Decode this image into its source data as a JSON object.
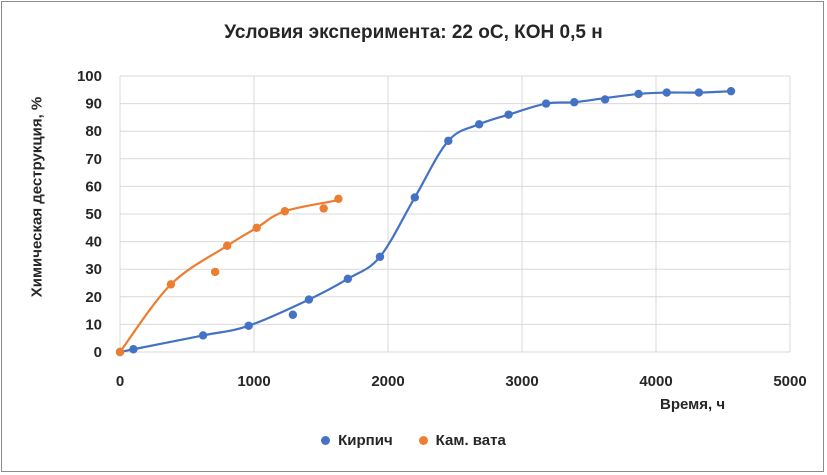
{
  "chart_data": {
    "type": "scatter",
    "title": "Условия эксперимента: 22 оС, КОН 0,5 н",
    "xlabel": "Время, ч",
    "ylabel": "Химическая деструкция, %",
    "xlim": [
      0,
      5000
    ],
    "ylim": [
      0,
      100
    ],
    "xticks": [
      0,
      1000,
      2000,
      3000,
      4000,
      5000
    ],
    "yticks": [
      0,
      10,
      20,
      30,
      40,
      50,
      60,
      70,
      80,
      90,
      100
    ],
    "grid": true,
    "legend_position": "bottom",
    "series": [
      {
        "name": "Кирпич",
        "color": "#4472c4",
        "x": [
          0,
          100,
          620,
          960,
          1290,
          1410,
          1700,
          1940,
          2200,
          2450,
          2680,
          2900,
          3180,
          3390,
          3620,
          3870,
          4080,
          4320,
          4560
        ],
        "y": [
          0,
          1,
          6,
          9.5,
          13.5,
          19,
          26.5,
          34.5,
          56,
          76.5,
          82.5,
          86,
          90,
          90.5,
          91.5,
          93.5,
          94,
          94,
          94.5
        ],
        "trend_x": [
          0,
          100,
          620,
          960,
          1410,
          1700,
          1940,
          2200,
          2450,
          2680,
          2900,
          3180,
          3390,
          3620,
          3870,
          4080,
          4320,
          4560
        ],
        "trend_y": [
          0,
          1,
          6,
          9.5,
          19,
          26.5,
          34.5,
          56,
          76.5,
          82.5,
          86,
          90,
          90.5,
          92,
          93.5,
          94,
          94,
          94.5
        ]
      },
      {
        "name": "Кам. вата",
        "color": "#ed7d31",
        "x": [
          0,
          380,
          710,
          800,
          1020,
          1230,
          1520,
          1630
        ],
        "y": [
          0,
          24.5,
          29,
          38.5,
          45,
          51,
          52,
          55.5
        ],
        "trend_x": [
          0,
          380,
          800,
          1020,
          1230,
          1630
        ],
        "trend_y": [
          0,
          24.5,
          38.5,
          45,
          51,
          55
        ]
      }
    ]
  }
}
